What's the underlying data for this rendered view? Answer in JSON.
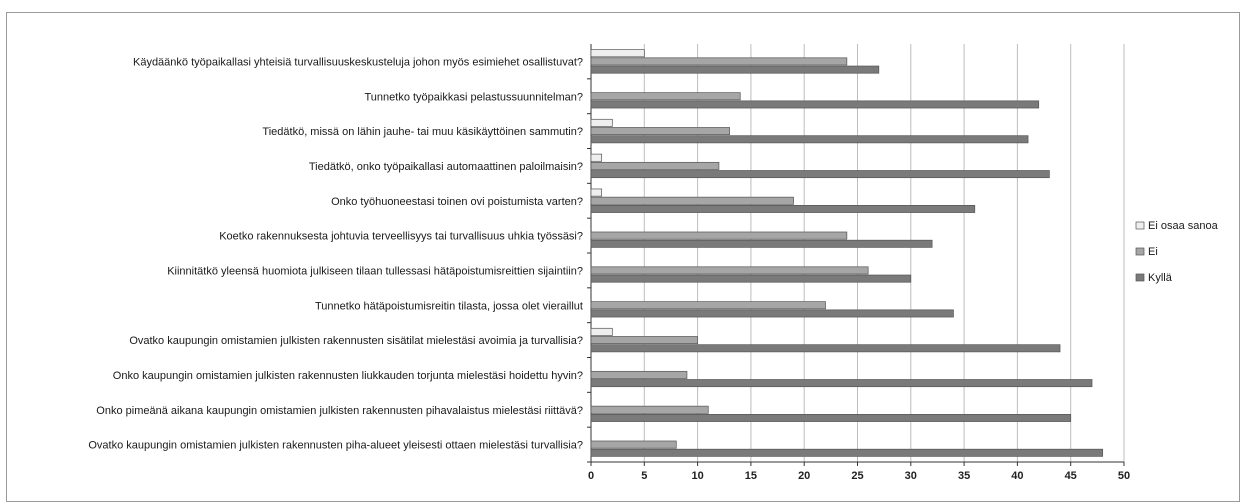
{
  "chart_data": {
    "type": "bar",
    "orientation": "horizontal",
    "categories": [
      "Käydäänkö työpaikallasi yhteisiä turvallisuuskeskusteluja johon myös esimiehet osallistuvat?",
      "Tunnetko työpaikkasi pelastussuunnitelman?",
      "Tiedätkö, missä on lähin jauhe- tai muu käsikäyttöinen sammutin?",
      "Tiedätkö, onko työpaikallasi automaattinen paloilmaisin?",
      "Onko työhuoneestasi toinen ovi poistumista varten?",
      "Koetko rakennuksesta johtuvia terveellisyys tai turvallisuus uhkia työssäsi?",
      "Kiinnitätkö yleensä huomiota julkiseen tilaan tullessasi hätäpoistumisreittien sijaintiin?",
      "Tunnetko hätäpoistumisreitin tilasta, jossa olet vieraillut",
      "Ovatko kaupungin omistamien julkisten rakennusten sisätilat mielestäsi avoimia ja turvallisia?",
      "Onko kaupungin omistamien julkisten rakennusten liukkauden torjunta mielestäsi hoidettu hyvin?",
      "Onko pimeänä aikana kaupungin omistamien julkisten rakennusten pihavalaistus mielestäsi riittävä?",
      "Ovatko kaupungin omistamien julkisten rakennusten piha-alueet yleisesti ottaen mielestäsi turvallisia?"
    ],
    "series": [
      {
        "name": "Ei osaa sanoa",
        "color": "#eeeeee",
        "values": [
          5,
          0,
          2,
          1,
          1,
          0,
          0,
          0,
          2,
          0,
          0,
          0
        ]
      },
      {
        "name": "Ei",
        "color": "#a6a6a6",
        "values": [
          24,
          14,
          13,
          12,
          19,
          24,
          26,
          22,
          10,
          9,
          11,
          8
        ]
      },
      {
        "name": "Kyllä",
        "color": "#7a7a7a",
        "values": [
          27,
          42,
          41,
          43,
          36,
          32,
          30,
          34,
          44,
          47,
          45,
          48
        ]
      }
    ],
    "xlim": [
      0,
      50
    ],
    "xticks": [
      "0",
      "5",
      "10",
      "15",
      "20",
      "25",
      "30",
      "35",
      "40",
      "45",
      "50"
    ],
    "grid": true,
    "legend_position": "right"
  }
}
